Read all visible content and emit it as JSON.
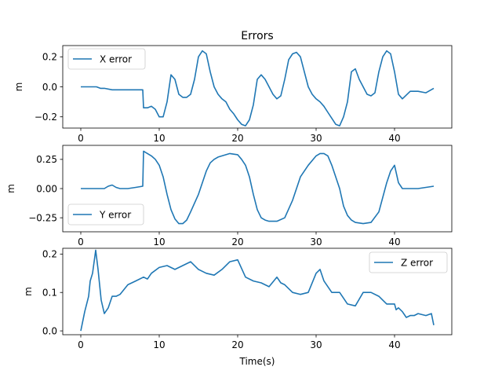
{
  "chart_data": [
    {
      "type": "line",
      "title": "Errors",
      "xlabel": "",
      "ylabel": "m",
      "xlim": [
        -2.3,
        47.3
      ],
      "ylim": [
        -0.275,
        0.275
      ],
      "xticks": [
        0,
        10,
        20,
        30,
        40
      ],
      "yticks": [
        -0.2,
        0.0,
        0.2
      ],
      "ytick_labels": [
        "−0.2",
        "0.0",
        "0.2"
      ],
      "legend_position": "upper-left",
      "series": [
        {
          "name": "X error",
          "color": "#1f77b4",
          "x": [
            0,
            1,
            2,
            2.5,
            3,
            4,
            5,
            6,
            7,
            7.9,
            8.0,
            8.5,
            9,
            9.5,
            10,
            10.5,
            11,
            11.5,
            12,
            12.5,
            13,
            13.5,
            14,
            14.5,
            15,
            15.5,
            16,
            16.5,
            17,
            17.5,
            18,
            18.5,
            19,
            19.5,
            20,
            20.5,
            21,
            21.5,
            22,
            22.5,
            23,
            23.5,
            24,
            24.5,
            25,
            25.5,
            26,
            26.5,
            27,
            27.5,
            28,
            28.5,
            29,
            29.5,
            30,
            30.5,
            31,
            31.5,
            32,
            32.5,
            33,
            33.5,
            34,
            34.5,
            35,
            35.5,
            36,
            36.5,
            37,
            37.5,
            38,
            38.5,
            39,
            39.5,
            40,
            40.5,
            41,
            42,
            43,
            44,
            45
          ],
          "y": [
            0.0,
            0.0,
            0.0,
            -0.01,
            -0.01,
            -0.02,
            -0.02,
            -0.02,
            -0.02,
            -0.02,
            -0.14,
            -0.14,
            -0.13,
            -0.15,
            -0.2,
            -0.2,
            -0.1,
            0.08,
            0.05,
            -0.05,
            -0.07,
            -0.07,
            -0.05,
            0.05,
            0.2,
            0.24,
            0.22,
            0.1,
            0.0,
            -0.05,
            -0.08,
            -0.1,
            -0.15,
            -0.18,
            -0.22,
            -0.25,
            -0.26,
            -0.22,
            -0.12,
            0.05,
            0.08,
            0.05,
            0.0,
            -0.05,
            -0.08,
            -0.06,
            0.05,
            0.18,
            0.22,
            0.23,
            0.2,
            0.1,
            0.0,
            -0.05,
            -0.08,
            -0.1,
            -0.13,
            -0.17,
            -0.21,
            -0.25,
            -0.26,
            -0.2,
            -0.1,
            0.1,
            0.12,
            0.05,
            0.0,
            -0.05,
            -0.06,
            -0.04,
            0.1,
            0.2,
            0.24,
            0.22,
            0.1,
            -0.05,
            -0.08,
            -0.03,
            -0.03,
            -0.04,
            -0.01
          ]
        }
      ]
    },
    {
      "type": "line",
      "title": "",
      "xlabel": "",
      "ylabel": "m",
      "xlim": [
        -2.3,
        47.3
      ],
      "ylim": [
        -0.37,
        0.37
      ],
      "xticks": [
        0,
        10,
        20,
        30,
        40
      ],
      "yticks": [
        -0.25,
        0.0,
        0.25
      ],
      "ytick_labels": [
        "−0.25",
        "0.00",
        "0.25"
      ],
      "legend_position": "lower-left",
      "series": [
        {
          "name": "Y error",
          "color": "#1f77b4",
          "x": [
            0,
            1,
            2,
            3,
            3.5,
            4,
            4.5,
            5,
            6,
            7,
            7.9,
            8.0,
            8.5,
            9,
            9.5,
            10,
            10.5,
            11,
            11.5,
            12,
            12.5,
            13,
            13.5,
            14,
            15,
            16,
            16.5,
            17,
            17.5,
            18,
            19,
            20,
            20.5,
            21,
            21.5,
            22,
            22.5,
            23,
            23.5,
            24,
            25,
            26,
            27,
            28,
            29,
            30,
            30.5,
            31,
            31.5,
            32,
            33,
            33.5,
            34,
            34.5,
            35,
            36,
            37,
            38,
            39,
            39.5,
            40,
            40.5,
            41,
            42,
            43,
            44,
            45
          ],
          "y": [
            0.0,
            0.0,
            0.0,
            0.0,
            0.02,
            0.03,
            0.01,
            0.0,
            0.0,
            0.01,
            0.02,
            0.32,
            0.3,
            0.28,
            0.25,
            0.2,
            0.1,
            -0.05,
            -0.18,
            -0.26,
            -0.3,
            -0.3,
            -0.27,
            -0.2,
            -0.05,
            0.15,
            0.22,
            0.25,
            0.27,
            0.28,
            0.3,
            0.29,
            0.25,
            0.2,
            0.1,
            -0.05,
            -0.18,
            -0.25,
            -0.27,
            -0.28,
            -0.28,
            -0.25,
            -0.1,
            0.1,
            0.2,
            0.28,
            0.3,
            0.3,
            0.28,
            0.2,
            0.0,
            -0.15,
            -0.23,
            -0.27,
            -0.29,
            -0.3,
            -0.29,
            -0.2,
            0.05,
            0.15,
            0.2,
            0.05,
            0.0,
            0.0,
            0.0,
            0.01,
            0.02
          ]
        }
      ]
    },
    {
      "type": "line",
      "title": "",
      "xlabel": "Time(s)",
      "ylabel": "m",
      "xlim": [
        -2.3,
        47.3
      ],
      "ylim": [
        -0.01,
        0.215
      ],
      "xticks": [
        0,
        10,
        20,
        30,
        40
      ],
      "yticks": [
        0.0,
        0.1,
        0.2
      ],
      "ytick_labels": [
        "0.0",
        "0.1",
        "0.2"
      ],
      "legend_position": "upper-right",
      "series": [
        {
          "name": "Z error",
          "color": "#1f77b4",
          "x": [
            0,
            0.2,
            0.5,
            1.0,
            1.2,
            1.5,
            1.9,
            2.2,
            2.6,
            3.0,
            3.5,
            4.0,
            4.5,
            5.0,
            6.0,
            7.0,
            8.0,
            8.5,
            9.0,
            10.0,
            11.0,
            12.0,
            13.0,
            14.0,
            15.0,
            16.0,
            17.0,
            18.0,
            19.0,
            20.0,
            21.0,
            22.0,
            23.0,
            24.0,
            25.0,
            25.5,
            26.0,
            27.0,
            28.0,
            29.0,
            30.0,
            30.5,
            31.0,
            32.0,
            33.0,
            34.0,
            35.0,
            36.0,
            37.0,
            38.0,
            39.0,
            40.0,
            40.2,
            40.5,
            41.0,
            41.5,
            42.0,
            42.5,
            43.0,
            44.0,
            44.7,
            45.0
          ],
          "y": [
            0.0,
            0.02,
            0.05,
            0.09,
            0.13,
            0.15,
            0.21,
            0.16,
            0.08,
            0.045,
            0.06,
            0.09,
            0.09,
            0.095,
            0.12,
            0.13,
            0.14,
            0.135,
            0.15,
            0.165,
            0.17,
            0.16,
            0.17,
            0.18,
            0.16,
            0.15,
            0.145,
            0.16,
            0.18,
            0.185,
            0.14,
            0.13,
            0.125,
            0.115,
            0.14,
            0.125,
            0.12,
            0.1,
            0.095,
            0.1,
            0.15,
            0.16,
            0.13,
            0.1,
            0.1,
            0.07,
            0.065,
            0.1,
            0.1,
            0.09,
            0.07,
            0.07,
            0.055,
            0.06,
            0.05,
            0.035,
            0.04,
            0.04,
            0.045,
            0.04,
            0.045,
            0.015
          ]
        }
      ]
    }
  ]
}
